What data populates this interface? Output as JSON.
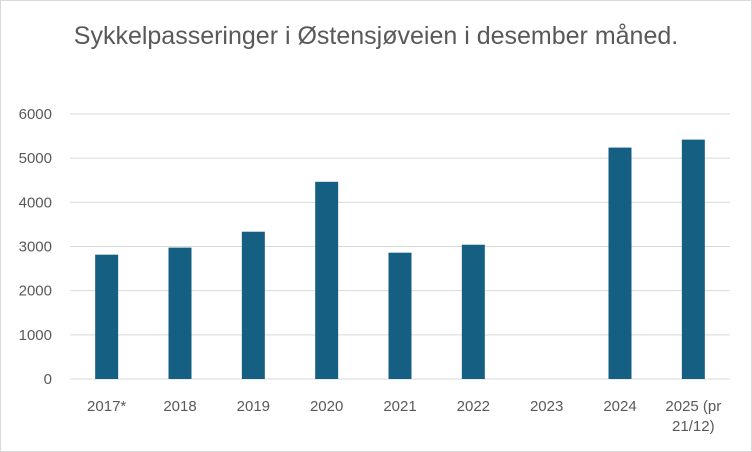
{
  "chart_data": {
    "type": "bar",
    "title": "Sykkelpasseringer i Østensjøveien i desember måned.",
    "xlabel": "",
    "ylabel": "",
    "categories": [
      "2017*",
      "2018",
      "2019",
      "2020",
      "2021",
      "2022",
      "2023",
      "2024",
      "2025 (pr 21/12)"
    ],
    "category_lines": [
      [
        "2017*"
      ],
      [
        "2018"
      ],
      [
        "2019"
      ],
      [
        "2020"
      ],
      [
        "2021"
      ],
      [
        "2022"
      ],
      [
        "2023"
      ],
      [
        "2024"
      ],
      [
        "2025 (pr",
        "21/12)"
      ]
    ],
    "values": [
      2815,
      2975,
      3335,
      4465,
      2860,
      3040,
      null,
      5240,
      5420
    ],
    "ylim": [
      0,
      6000
    ],
    "yticks": [
      0,
      1000,
      2000,
      3000,
      4000,
      5000,
      6000
    ],
    "grid": true,
    "legend": "none",
    "bar_color": "#156082"
  }
}
